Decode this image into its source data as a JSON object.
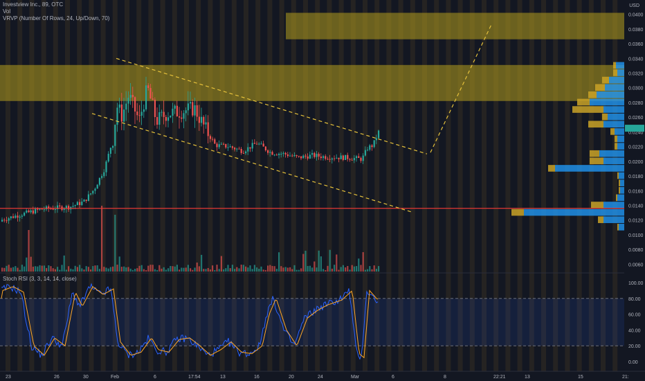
{
  "legend": {
    "symbol_line": "Investview Inc., 89, OTC",
    "vol_line": "Vol",
    "vrvp_line": "VRVP (Number Of Rows, 24, Up/Down, 70)"
  },
  "oscillator": {
    "title": "Stoch RSI (3, 3, 14, 14, close)"
  },
  "price_axis": {
    "currency": "USD",
    "ticks": [
      "0.0400",
      "0.0380",
      "0.0360",
      "0.0340",
      "0.0320",
      "0.0300",
      "0.0280",
      "0.0260",
      "0.0240",
      "0.0220",
      "0.0200",
      "0.0180",
      "0.0160",
      "0.0140",
      "0.0120",
      "0.0100",
      "0.0080",
      "0.0060"
    ],
    "last_price_label": ""
  },
  "rsi_axis": {
    "ticks": [
      "100.00",
      "80.00",
      "60.00",
      "40.00",
      "20.00",
      "0.00"
    ]
  },
  "time_axis": {
    "ticks": [
      "23",
      "26",
      "30",
      "Feb",
      "6",
      "17:54",
      "13",
      "16",
      "20",
      "24",
      "Mar",
      "6",
      "8",
      "22:21",
      "13",
      "15",
      "21:"
    ]
  },
  "colors": {
    "background": "#131722",
    "up": "#26a69a",
    "down": "#ef5350",
    "zone": "#b59e1e",
    "trendline": "#e7c23b",
    "support_line": "#e53935",
    "vrvp_up": "#2196f3",
    "vrvp_down": "#c9a227",
    "stoch_k": "#2962ff",
    "stoch_d": "#ffa726"
  },
  "chart_data": {
    "type": "candlestick",
    "resample_minutes": 89,
    "ylim": [
      0.005,
      0.041
    ],
    "supply_zones": [
      [
        0.0366,
        0.0402
      ],
      [
        0.0282,
        0.0331
      ]
    ],
    "support_level": 0.0136,
    "stoch_levels": [
      80,
      20
    ],
    "stoch_ylim": [
      0,
      100
    ]
  }
}
